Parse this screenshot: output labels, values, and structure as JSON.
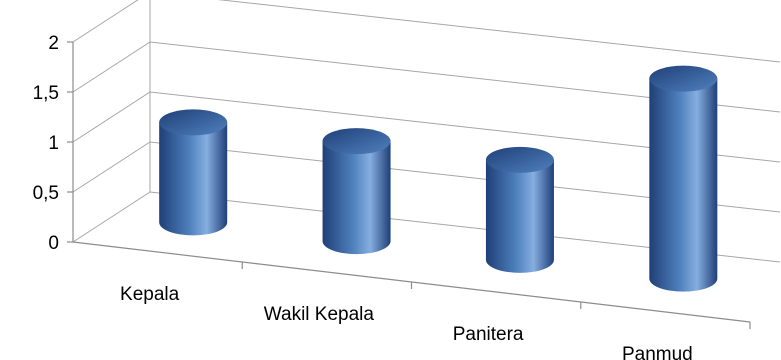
{
  "chart_data": {
    "type": "bar",
    "style": "3d-cylinder",
    "categories": [
      "Kepala",
      "Wakil Kepala",
      "Panitera",
      "Panmud"
    ],
    "values": [
      1,
      1,
      1,
      2
    ],
    "ylim": [
      0,
      2
    ],
    "y_ticks": [
      "0",
      "0,5",
      "1",
      "1,5",
      "2"
    ],
    "y_tick_values": [
      0,
      0.5,
      1,
      1.5,
      2
    ],
    "title": "",
    "xlabel": "",
    "ylabel": "",
    "grid": true,
    "legend": "none",
    "colors": {
      "bar": "#4f81bd",
      "bar_dark": "#1f3f78",
      "bar_light": "#86aee0",
      "gridline": "#a6a6a6"
    }
  }
}
